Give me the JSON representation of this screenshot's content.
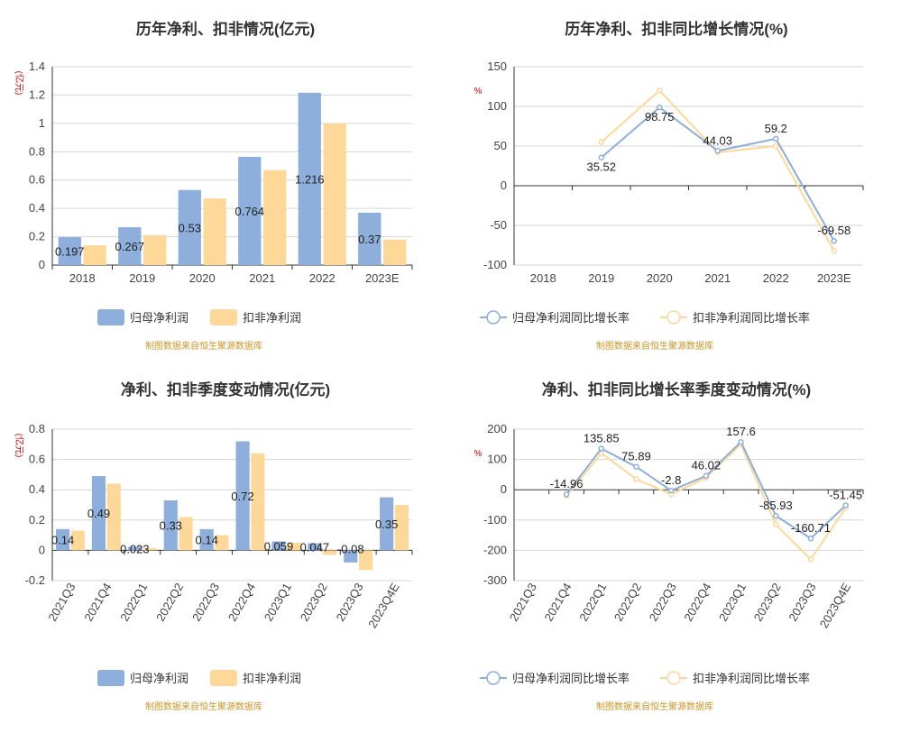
{
  "source_note": "制图数据来自恒生聚源数据库",
  "chart_data": [
    {
      "type": "bar",
      "title": "历年净利、扣非情况(亿元)",
      "ylabel": "(亿元)",
      "categories": [
        "2018",
        "2019",
        "2020",
        "2021",
        "2022",
        "2023E"
      ],
      "ylim": [
        0,
        1.4
      ],
      "yticks": [
        0,
        0.2,
        0.4,
        0.6,
        0.8,
        1,
        1.2,
        1.4
      ],
      "series": [
        {
          "name": "归母净利润",
          "color": "#8eaedb",
          "values": [
            0.197,
            0.267,
            0.53,
            0.764,
            1.216,
            0.37
          ],
          "labels": [
            "0.197",
            "0.267",
            "0.53",
            "0.764",
            "1.216",
            "0.37"
          ]
        },
        {
          "name": "扣非净利润",
          "color": "#fdd898",
          "values": [
            0.14,
            0.21,
            0.47,
            0.67,
            1.0,
            0.18
          ]
        }
      ],
      "legend": "bottom"
    },
    {
      "type": "line",
      "title": "历年净利、扣非同比增长情况(%)",
      "ylabel": "%",
      "categories": [
        "2018",
        "2019",
        "2020",
        "2021",
        "2022",
        "2023E"
      ],
      "ylim": [
        -100,
        150
      ],
      "yticks": [
        -100,
        -50,
        0,
        50,
        100,
        150
      ],
      "series": [
        {
          "name": "归母净利润同比增长率",
          "color": "#8eaedb",
          "values": [
            null,
            35.52,
            98.75,
            44.03,
            59.2,
            -69.58
          ],
          "labels": [
            "",
            "35.52",
            "98.75",
            "44.03",
            "59.2",
            "-69.58"
          ]
        },
        {
          "name": "扣非净利润同比增长率",
          "color": "#fdd898",
          "values": [
            null,
            55,
            120,
            42,
            50,
            -82
          ]
        }
      ],
      "legend": "bottom"
    },
    {
      "type": "bar",
      "title": "净利、扣非季度变动情况(亿元)",
      "ylabel": "(亿元)",
      "categories": [
        "2021Q3",
        "2021Q4",
        "2022Q1",
        "2022Q2",
        "2022Q3",
        "2022Q4",
        "2023Q1",
        "2023Q2",
        "2023Q3",
        "2023Q4E"
      ],
      "ylim": [
        -0.2,
        0.8
      ],
      "yticks": [
        -0.2,
        0,
        0.2,
        0.4,
        0.6,
        0.8
      ],
      "series": [
        {
          "name": "归母净利润",
          "color": "#8eaedb",
          "values": [
            0.14,
            0.49,
            0.023,
            0.33,
            0.14,
            0.72,
            0.059,
            0.047,
            -0.08,
            0.35
          ],
          "labels": [
            "0.14",
            "0.49",
            "0.023",
            "0.33",
            "0.14",
            "0.72",
            "0.059",
            "0.047",
            "-0.08",
            "0.35"
          ]
        },
        {
          "name": "扣非净利润",
          "color": "#fdd898",
          "values": [
            0.13,
            0.44,
            0.015,
            0.22,
            0.1,
            0.64,
            0.05,
            -0.03,
            -0.13,
            0.3
          ]
        }
      ],
      "legend": "bottom"
    },
    {
      "type": "line",
      "title": "净利、扣非同比增长率季度变动情况(%)",
      "ylabel": "%",
      "categories": [
        "2021Q3",
        "2021Q4",
        "2022Q1",
        "2022Q2",
        "2022Q3",
        "2022Q4",
        "2023Q1",
        "2023Q2",
        "2023Q3",
        "2023Q4E"
      ],
      "ylim": [
        -300,
        200
      ],
      "yticks": [
        -300,
        -200,
        -100,
        0,
        100,
        200
      ],
      "series": [
        {
          "name": "归母净利润同比增长率",
          "color": "#8eaedb",
          "values": [
            null,
            -14.96,
            135.85,
            75.89,
            -2.8,
            46.02,
            157.6,
            -85.93,
            -160.71,
            -51.45
          ],
          "labels": [
            "",
            "-14.96",
            "135.85",
            "75.89",
            "-2.8",
            "46.02",
            "157.6",
            "-85.93",
            "-160.71",
            "-51.45"
          ]
        },
        {
          "name": "扣非净利润同比增长率",
          "color": "#fdd898",
          "values": [
            null,
            -20,
            120,
            35,
            -15,
            40,
            150,
            -115,
            -230,
            -60
          ]
        }
      ],
      "legend": "bottom"
    }
  ]
}
